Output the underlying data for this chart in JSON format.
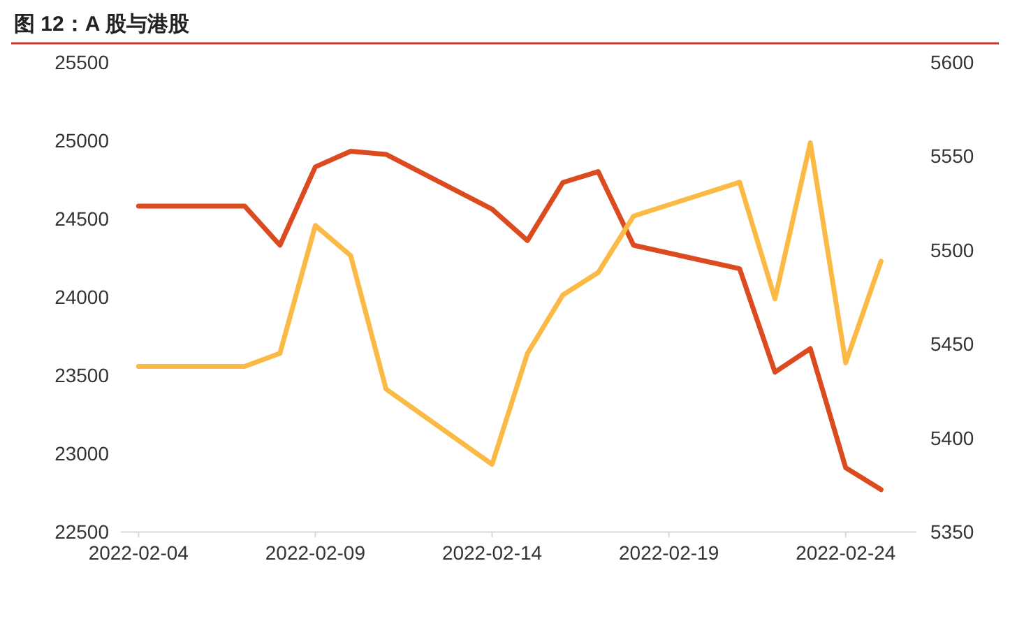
{
  "chart_data": {
    "type": "line",
    "title": "图 12：A 股与港股",
    "x": [
      "2022-02-04",
      "2022-02-07",
      "2022-02-08",
      "2022-02-09",
      "2022-02-10",
      "2022-02-11",
      "2022-02-14",
      "2022-02-15",
      "2022-02-16",
      "2022-02-17",
      "2022-02-18",
      "2022-02-21",
      "2022-02-22",
      "2022-02-23",
      "2022-02-24",
      "2022-02-25"
    ],
    "series": [
      {
        "color": "#dc4a1f",
        "values": [
          24580,
          24580,
          24330,
          24830,
          24930,
          24910,
          24560,
          24360,
          24730,
          24800,
          24330,
          24180,
          23520,
          23670,
          22910,
          22770
        ]
      },
      {
        "color": "#fbba46",
        "axis": "y2",
        "values": [
          5438,
          5438,
          5445,
          5513,
          5497,
          5426,
          5386,
          5445,
          5476,
          5488,
          5518,
          5536,
          5474,
          5557,
          5440,
          5494
        ]
      }
    ],
    "xlim": [
      "2022-02-03T12:00",
      "2022-02-26"
    ],
    "xticks": [
      "2022-02-04",
      "2022-02-09",
      "2022-02-14",
      "2022-02-19",
      "2022-02-24"
    ],
    "ylim": [
      22500,
      25500
    ],
    "yticks": [
      22500,
      23000,
      23500,
      24000,
      24500,
      25000,
      25500
    ],
    "y2lim": [
      5350,
      5600
    ],
    "y2ticks": [
      5350,
      5400,
      5450,
      5500,
      5550,
      5600
    ],
    "grid": false,
    "marker": "none",
    "line_style": "solid"
  }
}
